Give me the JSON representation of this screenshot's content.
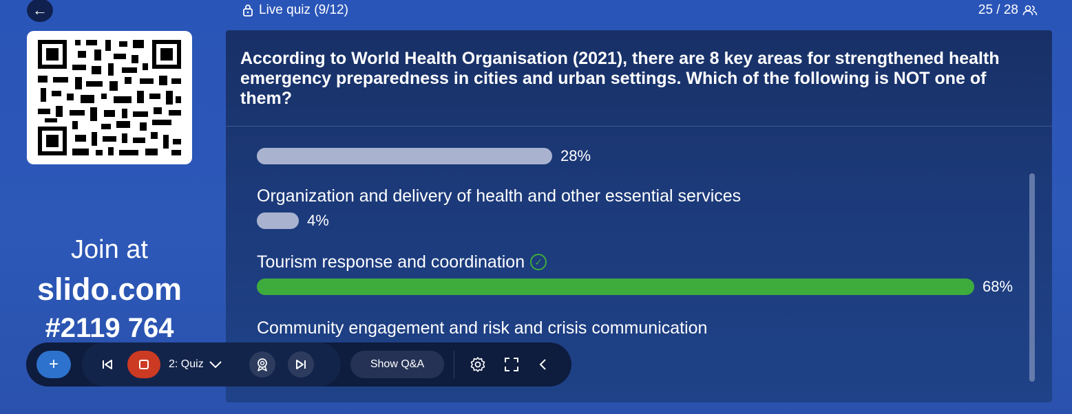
{
  "topbar": {
    "back_icon": "arrow-left-icon",
    "title": "Live quiz (9/12)",
    "lock_icon": "lock-icon",
    "participants": "25 / 28",
    "participants_icon": "users-icon"
  },
  "join": {
    "line1": "Join at",
    "url": "slido.com",
    "code": "#2119 764"
  },
  "question": {
    "text": "According to World Health Organisation (2021), there are 8 key areas for strengthened health emergency preparedness in cities and urban settings. Which of the following is NOT one of them?"
  },
  "options": [
    {
      "label": "",
      "percent": 28,
      "percent_text": "28%",
      "correct": false
    },
    {
      "label": "Organization and delivery of health and other essential services",
      "percent": 4,
      "percent_text": "4%",
      "correct": false
    },
    {
      "label": "Tourism response and coordination",
      "percent": 68,
      "percent_text": "68%",
      "correct": true
    },
    {
      "label": "Community engagement and risk and crisis communication",
      "percent": null,
      "percent_text": "",
      "correct": false
    }
  ],
  "toolbar": {
    "quiz_label": "2: Quiz",
    "qa_label": "Show Q&A"
  },
  "colors": {
    "background": "#2a55b8",
    "panel": "#1c3a7a",
    "bar": "#a9b3cf",
    "correct": "#3eac3c",
    "stop": "#cc3a23",
    "add": "#2d72cc"
  }
}
